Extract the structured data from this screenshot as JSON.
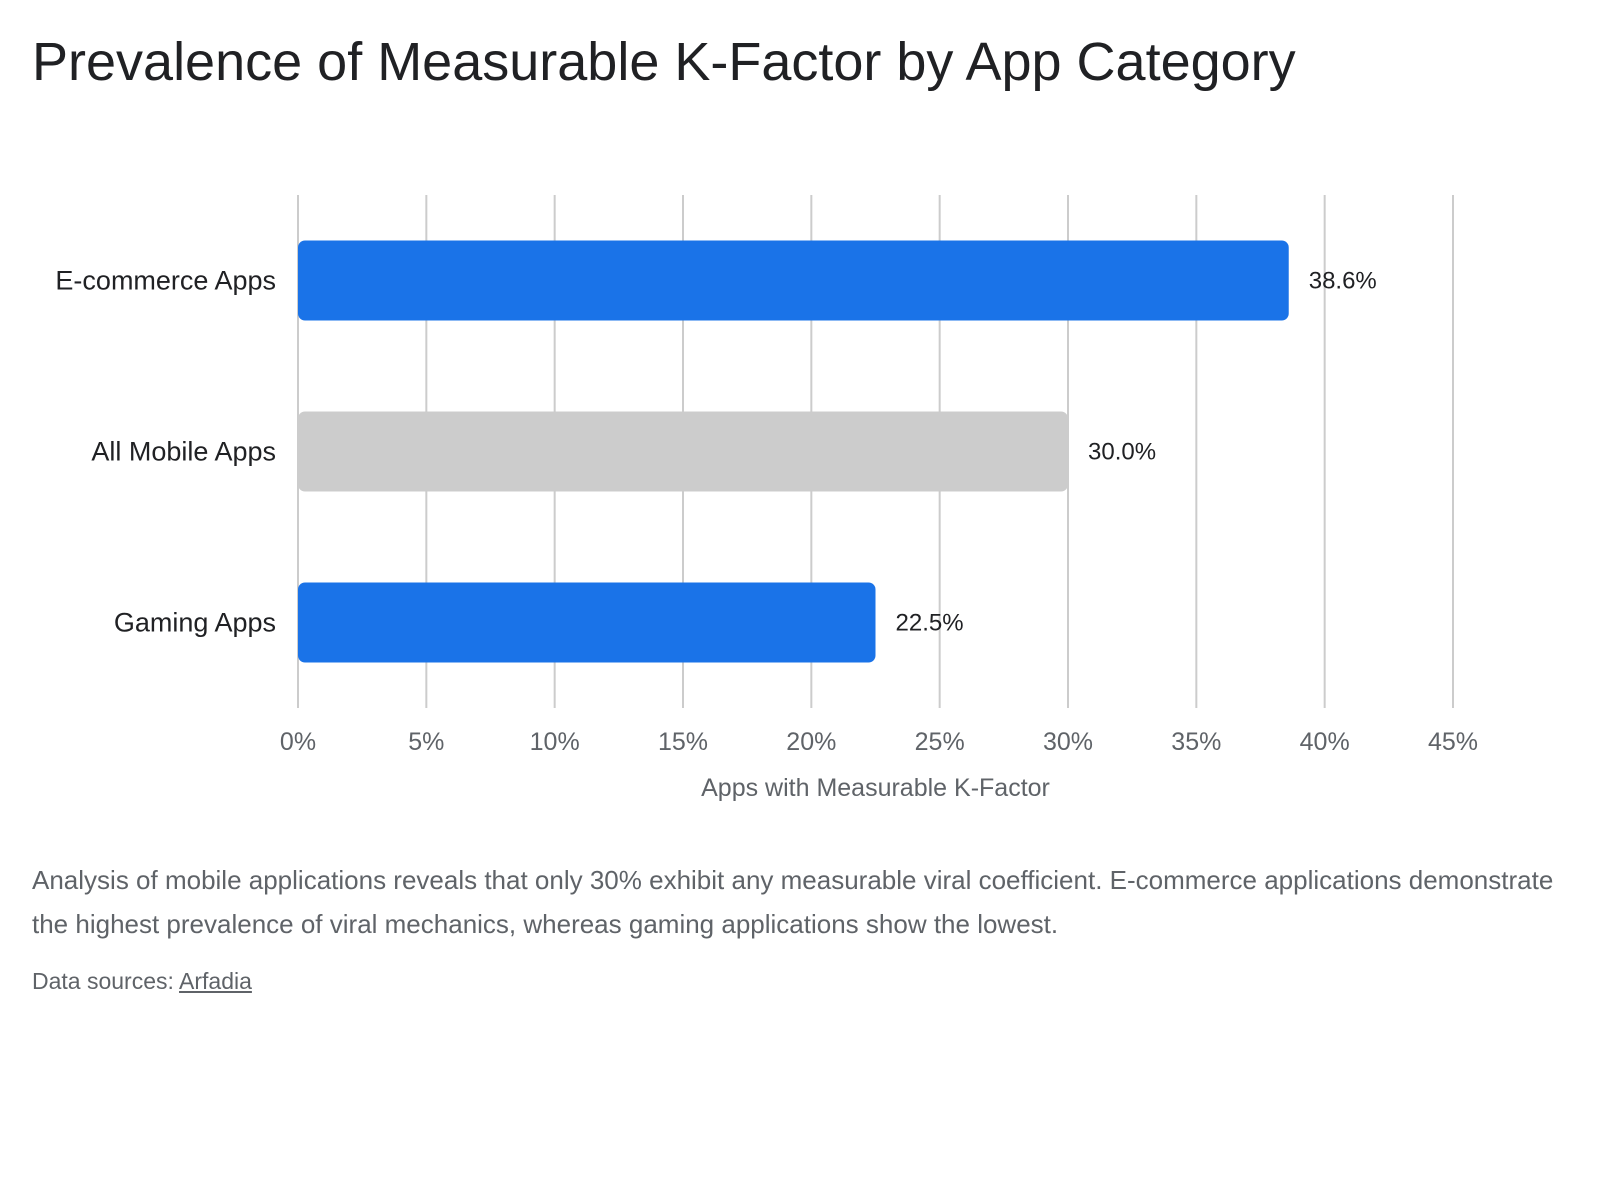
{
  "chart_data": {
    "type": "bar",
    "orientation": "horizontal",
    "title": "Prevalence of Measurable K-Factor by App Category",
    "xlabel": "Apps with Measurable K-Factor",
    "ylabel": "",
    "xlim": [
      0,
      45
    ],
    "x_ticks": [
      "0%",
      "5%",
      "10%",
      "15%",
      "20%",
      "25%",
      "30%",
      "35%",
      "40%",
      "45%"
    ],
    "grid": true,
    "categories": [
      "E-commerce Apps",
      "All Mobile Apps",
      "Gaming Apps"
    ],
    "values": [
      38.6,
      30.0,
      22.5
    ],
    "value_labels": [
      "38.6%",
      "30.0%",
      "22.5%"
    ],
    "bar_colors": [
      "#1a73e8",
      "#cccccc",
      "#1a73e8"
    ]
  },
  "caption": "Analysis of mobile applications reveals that only 30% exhibit any measurable viral coefficient. E-commerce applications demonstrate the highest prevalence of viral mechanics, whereas gaming applications show the lowest.",
  "sources": {
    "label": "Data sources:",
    "link_text": "Arfadia"
  },
  "colors": {
    "grid": "#cccccc",
    "text": "#202124",
    "muted": "#5f6368"
  }
}
